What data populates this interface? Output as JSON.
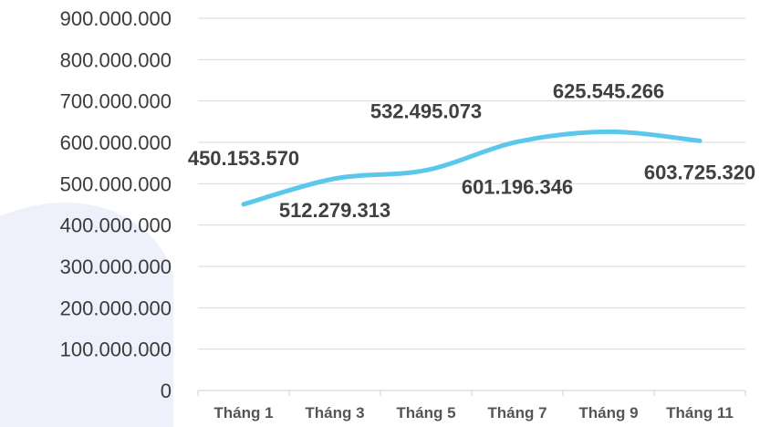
{
  "chart_data": {
    "type": "line",
    "categories": [
      "Tháng 1",
      "Tháng 3",
      "Tháng 5",
      "Tháng 7",
      "Tháng 9",
      "Tháng 11"
    ],
    "series": [
      {
        "values": [
          450153570,
          512279313,
          532495073,
          601196346,
          625545266,
          603725320
        ],
        "value_labels": [
          "450.153.570",
          "512.279.313",
          "532.495.073",
          "601.196.346",
          "625.545.266",
          "603.725.320"
        ],
        "color": "#5bc8eb"
      }
    ],
    "y_ticks": [
      "0",
      "100.000.000",
      "200.000.000",
      "300.000.000",
      "400.000.000",
      "500.000.000",
      "600.000.000",
      "700.000.000",
      "800.000.000",
      "900.000.000"
    ],
    "ylim": [
      0,
      900000000
    ],
    "grid": true,
    "gridline_color": "#d9d9d9",
    "watermark_color": "#eef1fb",
    "legend": "none"
  }
}
